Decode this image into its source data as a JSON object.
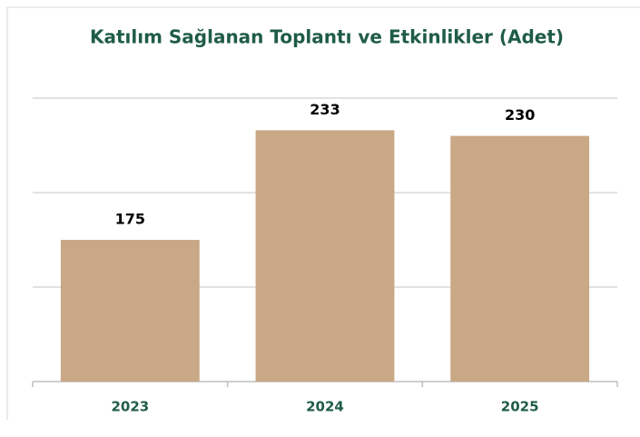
{
  "chart_data": {
    "type": "bar",
    "title": "Katılım Sağlanan Toplantı ve Etkinlikler (Adet)",
    "categories": [
      "2023",
      "2024",
      "2025"
    ],
    "values": [
      175,
      233,
      230
    ],
    "color": "#c9a886",
    "ylim": [
      100,
      250
    ],
    "yticks": [
      100,
      150,
      200,
      250
    ],
    "grid": true
  }
}
